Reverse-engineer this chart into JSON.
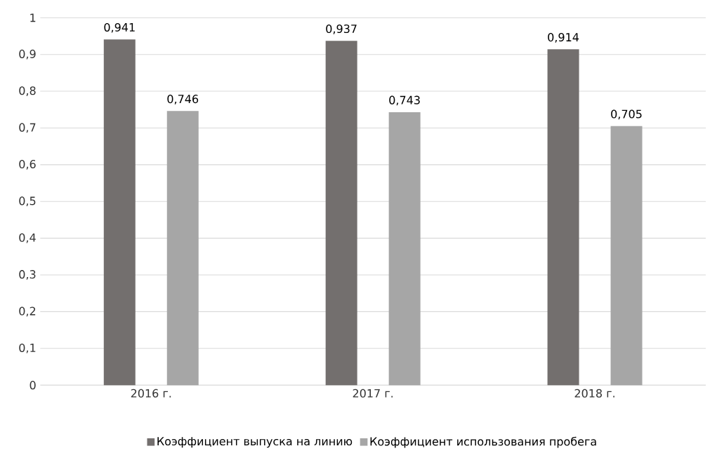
{
  "chart_data": {
    "type": "bar",
    "categories": [
      "2016 г.",
      "2017 г.",
      "2018 г."
    ],
    "series": [
      {
        "name": "Коэффициент выпуска на линию",
        "color": "#736f6e",
        "values": [
          0.941,
          0.937,
          0.914
        ],
        "value_labels": [
          "0,941",
          "0,937",
          "0,914"
        ]
      },
      {
        "name": "Коэффициент использования пробега",
        "color": "#a6a6a6",
        "values": [
          0.746,
          0.743,
          0.705
        ],
        "value_labels": [
          "0,746",
          "0,743",
          "0,705"
        ]
      }
    ],
    "ylim": [
      0,
      1
    ],
    "yticks": [
      {
        "value": 0,
        "label": "0"
      },
      {
        "value": 0.1,
        "label": "0,1"
      },
      {
        "value": 0.2,
        "label": "0,2"
      },
      {
        "value": 0.3,
        "label": "0,3"
      },
      {
        "value": 0.4,
        "label": "0,4"
      },
      {
        "value": 0.5,
        "label": "0,5"
      },
      {
        "value": 0.6,
        "label": "0,6"
      },
      {
        "value": 0.7,
        "label": "0,7"
      },
      {
        "value": 0.8,
        "label": "0,8"
      },
      {
        "value": 0.9,
        "label": "0,9"
      },
      {
        "value": 1,
        "label": "1"
      }
    ],
    "grid": "y",
    "legend": "bottom"
  }
}
